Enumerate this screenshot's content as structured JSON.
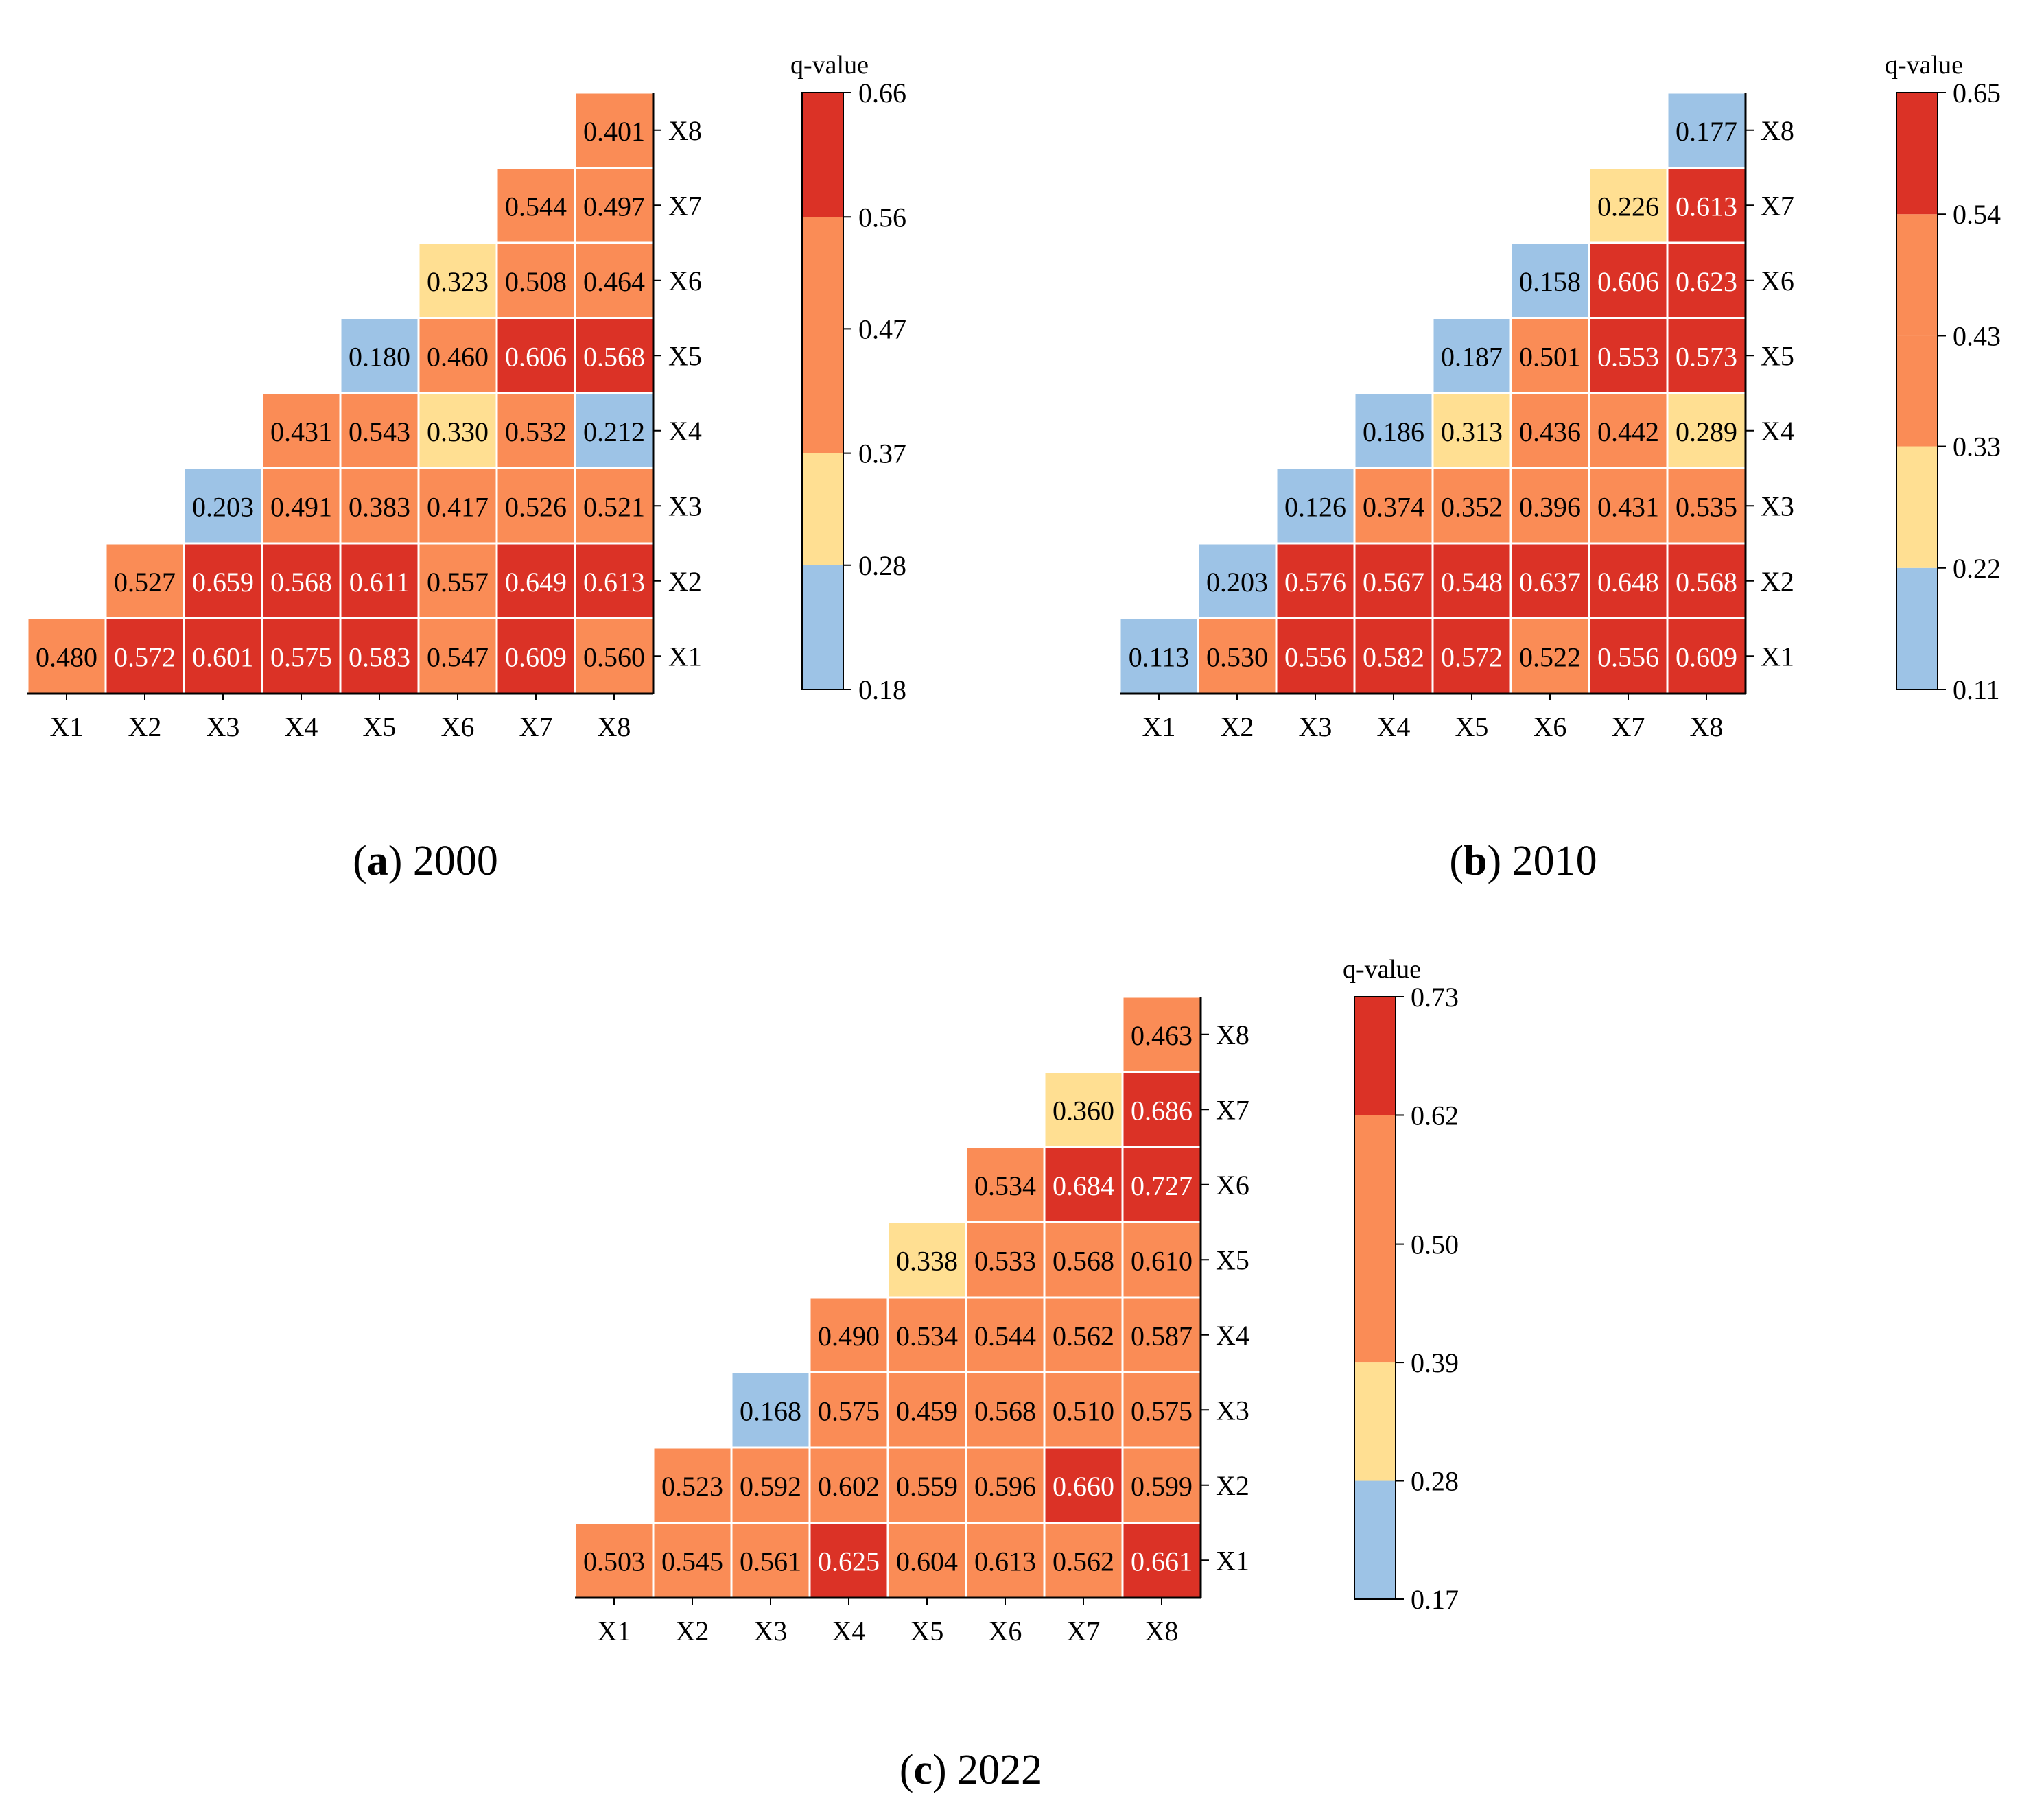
{
  "chart_data": [
    {
      "type": "heatmap",
      "caption_letter": "a",
      "caption_text": " 2000",
      "colorbar_title": "q-value",
      "x_categories": [
        "X1",
        "X2",
        "X3",
        "X4",
        "X5",
        "X6",
        "X7",
        "X8"
      ],
      "y_categories": [
        "X1",
        "X2",
        "X3",
        "X4",
        "X5",
        "X6",
        "X7",
        "X8"
      ],
      "cells": {
        "X1": {
          "X1": 0.48,
          "X2": 0.572,
          "X3": 0.601,
          "X4": 0.575,
          "X5": 0.583,
          "X6": 0.547,
          "X7": 0.609,
          "X8": 0.56
        },
        "X2": {
          "X2": 0.527,
          "X3": 0.659,
          "X4": 0.568,
          "X5": 0.611,
          "X6": 0.557,
          "X7": 0.649,
          "X8": 0.613
        },
        "X3": {
          "X3": 0.203,
          "X4": 0.491,
          "X5": 0.383,
          "X6": 0.417,
          "X7": 0.526,
          "X8": 0.521
        },
        "X4": {
          "X4": 0.431,
          "X5": 0.543,
          "X6": 0.33,
          "X7": 0.532,
          "X8": 0.212
        },
        "X5": {
          "X5": 0.18,
          "X6": 0.46,
          "X7": 0.606,
          "X8": 0.568
        },
        "X6": {
          "X6": 0.323,
          "X7": 0.508,
          "X8": 0.464
        },
        "X7": {
          "X7": 0.544,
          "X8": 0.497
        },
        "X8": {
          "X8": 0.401
        }
      },
      "colorbar_breaks": [
        0.18,
        0.28,
        0.37,
        0.47,
        0.56,
        0.66
      ],
      "colorbar_labels": [
        "0.18",
        "0.28",
        "0.37",
        "0.47",
        "0.56",
        "0.66"
      ],
      "value_range": [
        0.18,
        0.66
      ]
    },
    {
      "type": "heatmap",
      "caption_letter": "b",
      "caption_text": " 2010",
      "colorbar_title": "q-value",
      "x_categories": [
        "X1",
        "X2",
        "X3",
        "X4",
        "X5",
        "X6",
        "X7",
        "X8"
      ],
      "y_categories": [
        "X1",
        "X2",
        "X3",
        "X4",
        "X5",
        "X6",
        "X7",
        "X8"
      ],
      "cells": {
        "X1": {
          "X1": 0.113,
          "X2": 0.53,
          "X3": 0.556,
          "X4": 0.582,
          "X5": 0.572,
          "X6": 0.522,
          "X7": 0.556,
          "X8": 0.609
        },
        "X2": {
          "X2": 0.203,
          "X3": 0.576,
          "X4": 0.567,
          "X5": 0.548,
          "X6": 0.637,
          "X7": 0.648,
          "X8": 0.568
        },
        "X3": {
          "X3": 0.126,
          "X4": 0.374,
          "X5": 0.352,
          "X6": 0.396,
          "X7": 0.431,
          "X8": 0.535
        },
        "X4": {
          "X4": 0.186,
          "X5": 0.313,
          "X6": 0.436,
          "X7": 0.442,
          "X8": 0.289
        },
        "X5": {
          "X5": 0.187,
          "X6": 0.501,
          "X7": 0.553,
          "X8": 0.573
        },
        "X6": {
          "X6": 0.158,
          "X7": 0.606,
          "X8": 0.623
        },
        "X7": {
          "X7": 0.226,
          "X8": 0.613
        },
        "X8": {
          "X8": 0.177
        }
      },
      "colorbar_breaks": [
        0.11,
        0.22,
        0.33,
        0.43,
        0.54,
        0.65
      ],
      "colorbar_labels": [
        "0.11",
        "0.22",
        "0.33",
        "0.43",
        "0.54",
        "0.65"
      ],
      "value_range": [
        0.11,
        0.65
      ]
    },
    {
      "type": "heatmap",
      "caption_letter": "c",
      "caption_text": " 2022",
      "colorbar_title": "q-value",
      "x_categories": [
        "X1",
        "X2",
        "X3",
        "X4",
        "X5",
        "X6",
        "X7",
        "X8"
      ],
      "y_categories": [
        "X1",
        "X2",
        "X3",
        "X4",
        "X5",
        "X6",
        "X7",
        "X8"
      ],
      "cells": {
        "X1": {
          "X1": 0.503,
          "X2": 0.545,
          "X3": 0.561,
          "X4": 0.625,
          "X5": 0.604,
          "X6": 0.613,
          "X7": 0.562,
          "X8": 0.661
        },
        "X2": {
          "X2": 0.523,
          "X3": 0.592,
          "X4": 0.602,
          "X5": 0.559,
          "X6": 0.596,
          "X7": 0.66,
          "X8": 0.599
        },
        "X3": {
          "X3": 0.168,
          "X4": 0.575,
          "X5": 0.459,
          "X6": 0.568,
          "X7": 0.51,
          "X8": 0.575
        },
        "X4": {
          "X4": 0.49,
          "X5": 0.534,
          "X6": 0.544,
          "X7": 0.562,
          "X8": 0.587
        },
        "X5": {
          "X5": 0.338,
          "X6": 0.533,
          "X7": 0.568,
          "X8": 0.61
        },
        "X6": {
          "X6": 0.534,
          "X7": 0.684,
          "X8": 0.727
        },
        "X7": {
          "X7": 0.36,
          "X8": 0.686
        },
        "X8": {
          "X8": 0.463
        }
      },
      "colorbar_breaks": [
        0.17,
        0.28,
        0.39,
        0.5,
        0.62,
        0.73
      ],
      "colorbar_labels": [
        "0.17",
        "0.28",
        "0.39",
        "0.50",
        "0.62",
        "0.73"
      ],
      "value_range": [
        0.17,
        0.73
      ]
    }
  ],
  "colors": {
    "class_fill": [
      "#9DC3E6",
      "#FFDF92",
      "#FA8C56",
      "#FA8C56",
      "#DB3226"
    ],
    "cell_border": "#ffffff",
    "axis": "#000000",
    "text_dark": "#000000",
    "text_light": "#ffffff"
  }
}
